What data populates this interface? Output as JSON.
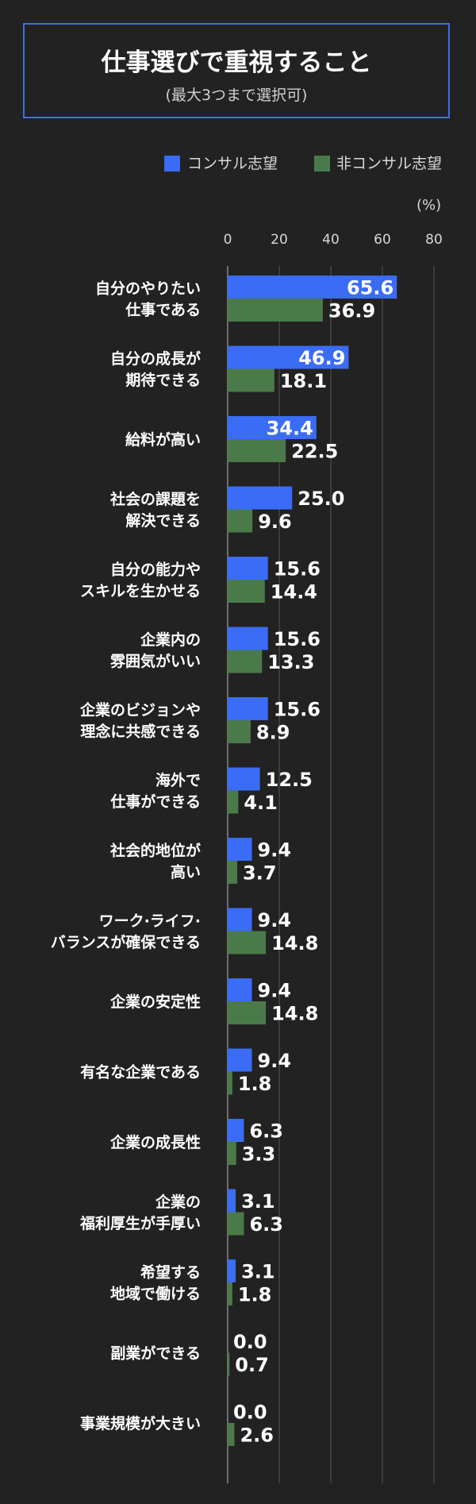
{
  "title": "仕事選びで重視すること",
  "subtitle": "(最大3つまで選択可)",
  "unit_label": "(%)",
  "colors": {
    "background": "#222222",
    "consul": "#3a6cf5",
    "nonconsul": "#4b7a4a",
    "frame": "#3f6fe0"
  },
  "chart_data": {
    "type": "bar",
    "orientation": "horizontal",
    "xlim": [
      0,
      80
    ],
    "ticks": [
      "0",
      "20",
      "40",
      "60",
      "80"
    ],
    "tick_values": [
      0,
      20,
      40,
      60,
      80
    ],
    "legend_position": "top-right",
    "categories": [
      [
        "自分のやりたい",
        "仕事である"
      ],
      [
        "自分の成長が",
        "期待できる"
      ],
      [
        "給料が高い"
      ],
      [
        "社会の課題を",
        "解決できる"
      ],
      [
        "自分の能力や",
        "スキルを生かせる"
      ],
      [
        "企業内の",
        "雰囲気がいい"
      ],
      [
        "企業のビジョンや",
        "理念に共感できる"
      ],
      [
        "海外で",
        "仕事ができる"
      ],
      [
        "社会的地位が",
        "高い"
      ],
      [
        "ワーク·ライフ·",
        "バランスが確保できる"
      ],
      [
        "企業の安定性"
      ],
      [
        "有名な企業である"
      ],
      [
        "企業の成長性"
      ],
      [
        "企業の",
        "福利厚生が手厚い"
      ],
      [
        "希望する",
        "地域で働ける"
      ],
      [
        "副業ができる"
      ],
      [
        "事業規模が大きい"
      ]
    ],
    "series": [
      {
        "name": "コンサル志望",
        "values": [
          65.6,
          46.9,
          34.4,
          25.0,
          15.6,
          15.6,
          15.6,
          12.5,
          9.4,
          9.4,
          9.4,
          9.4,
          6.3,
          3.1,
          3.1,
          0.0,
          0.0
        ],
        "labels": [
          "65.6",
          "46.9",
          "34.4",
          "25.0",
          "15.6",
          "15.6",
          "15.6",
          "12.5",
          "9.4",
          "9.4",
          "9.4",
          "9.4",
          "6.3",
          "3.1",
          "3.1",
          "0.0",
          "0.0"
        ]
      },
      {
        "name": "非コンサル志望",
        "values": [
          36.9,
          18.1,
          22.5,
          9.6,
          14.4,
          13.3,
          8.9,
          4.1,
          3.7,
          14.8,
          14.8,
          1.8,
          3.3,
          6.3,
          1.8,
          0.7,
          2.6
        ],
        "labels": [
          "36.9",
          "18.1",
          "22.5",
          "9.6",
          "14.4",
          "13.3",
          "8.9",
          "4.1",
          "3.7",
          "14.8",
          "14.8",
          "1.8",
          "3.3",
          "6.3",
          "1.8",
          "0.7",
          "2.6"
        ]
      }
    ]
  }
}
